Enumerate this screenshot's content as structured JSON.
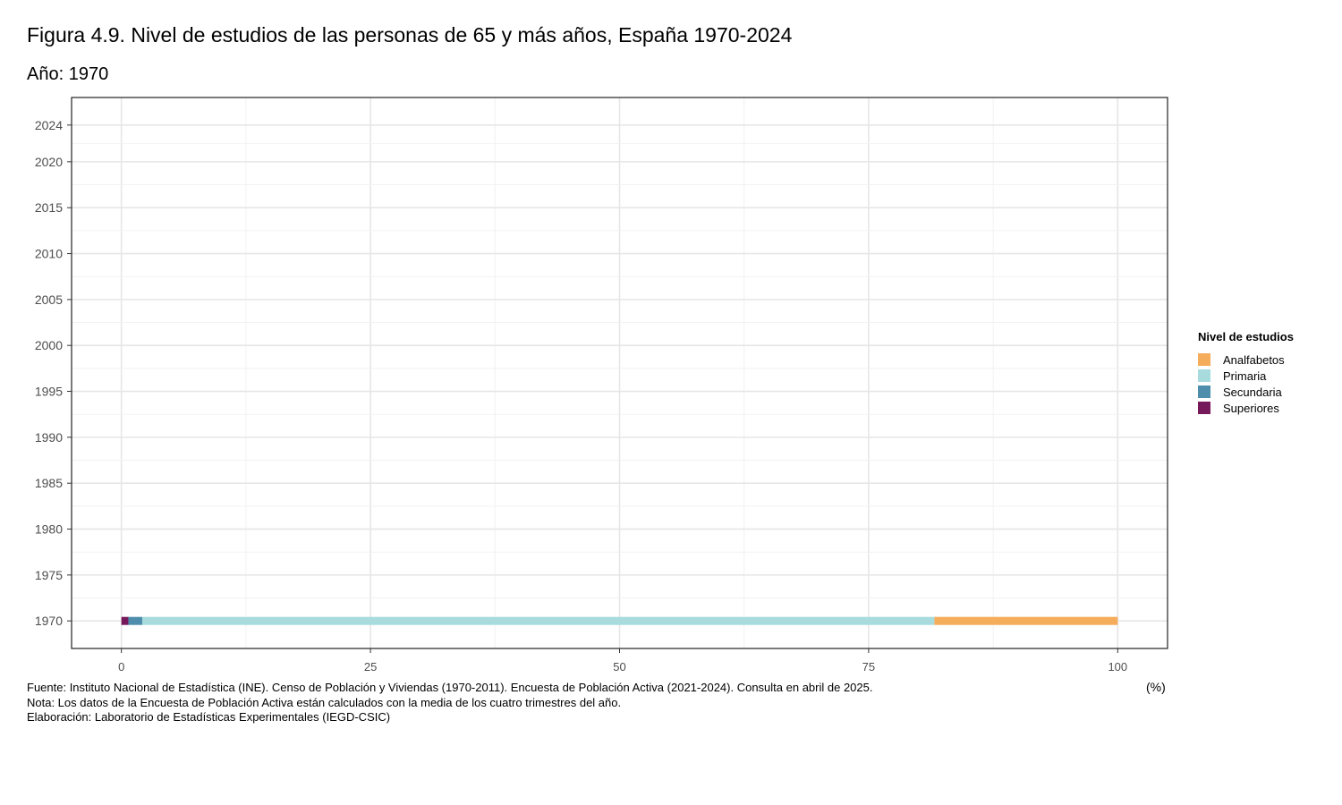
{
  "title": "Figura 4.9. Nivel de estudios de las personas de 65 y más años, España 1970-2024",
  "subtitle": "Año: 1970",
  "unit_label": "(%)",
  "notes": [
    "Fuente: Instituto Nacional de Estadística (INE). Censo de Población y Viviendas (1970-2011). Encuesta de Población Activa (2021-2024). Consulta en abril de 2025.",
    "Nota: Los datos de la Encuesta de Población Activa están calculados con la media de los cuatro trimestres del año.",
    "Elaboración: Laboratorio de Estadísticas Experimentales (IEGD-CSIC)"
  ],
  "legend": {
    "title": "Nivel de estudios",
    "items": [
      {
        "label": "Analfabetos",
        "color": "#F5AC5B"
      },
      {
        "label": "Primaria",
        "color": "#A8DBDE"
      },
      {
        "label": "Secundaria",
        "color": "#4E8EAC"
      },
      {
        "label": "Superiores",
        "color": "#76195A"
      }
    ]
  },
  "chart_data": {
    "type": "bar",
    "orientation": "horizontal",
    "stacked": true,
    "categories": [
      "1970"
    ],
    "series": [
      {
        "name": "Superiores",
        "values": [
          0.7
        ],
        "color": "#76195A"
      },
      {
        "name": "Secundaria",
        "values": [
          1.4
        ],
        "color": "#4E8EAC"
      },
      {
        "name": "Primaria",
        "values": [
          79.5
        ],
        "color": "#A8DBDE"
      },
      {
        "name": "Analfabetos",
        "values": [
          18.4
        ],
        "color": "#F5AC5B"
      }
    ],
    "xlim": [
      -5,
      105
    ],
    "xticks": [
      "0",
      "25",
      "50",
      "75",
      "100"
    ],
    "ylim": [
      1967,
      2027
    ],
    "yticks": [
      "1970",
      "1975",
      "1980",
      "1985",
      "1990",
      "1995",
      "2000",
      "2005",
      "2010",
      "2015",
      "2020",
      "2024"
    ],
    "grid": true
  }
}
